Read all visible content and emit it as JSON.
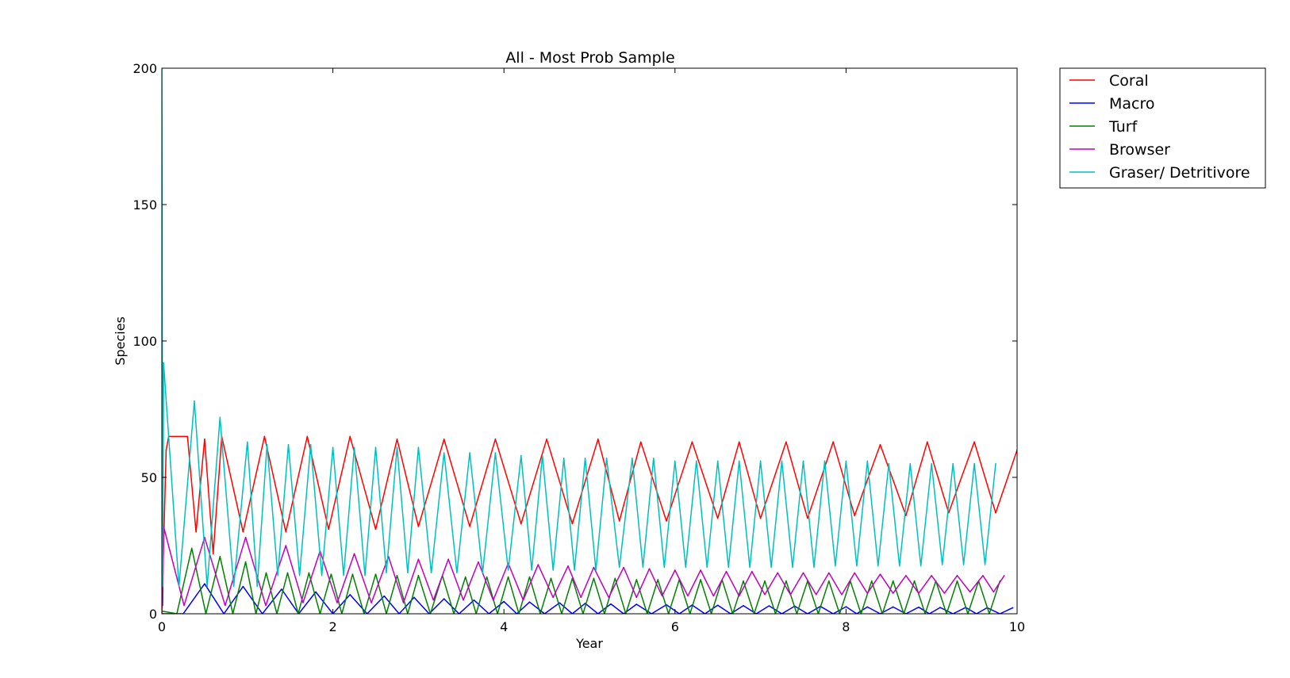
{
  "chart_data": {
    "type": "line",
    "title": "All - Most Prob Sample",
    "xlabel": "Year",
    "ylabel": "Species",
    "xlim": [
      0,
      10
    ],
    "ylim": [
      0,
      200
    ],
    "xticks": [
      0,
      2,
      4,
      6,
      8,
      10
    ],
    "yticks": [
      0,
      50,
      100,
      150,
      200
    ],
    "grid": false,
    "legend_position": "outside-top-right",
    "series": [
      {
        "name": "Coral",
        "color": "#ff0000",
        "x": [
          0,
          0.05,
          0.08,
          0.3,
          0.4,
          0.5,
          0.6,
          0.7,
          0.95,
          1.2,
          1.45,
          1.7,
          1.95,
          2.2,
          2.5,
          2.75,
          3.0,
          3.3,
          3.6,
          3.9,
          4.2,
          4.5,
          4.8,
          5.1,
          5.35,
          5.6,
          5.9,
          6.2,
          6.5,
          6.75,
          7.0,
          7.3,
          7.55,
          7.85,
          8.1,
          8.4,
          8.7,
          8.95,
          9.2,
          9.5,
          9.75,
          10.0
        ],
        "y": [
          0,
          60,
          65,
          65,
          30,
          64,
          22,
          65,
          30,
          65,
          30,
          65,
          31,
          65,
          31,
          64,
          32,
          64,
          32,
          64,
          33,
          64,
          33,
          64,
          34,
          63,
          34,
          63,
          35,
          63,
          35,
          63,
          35,
          63,
          36,
          62,
          36,
          63,
          37,
          63,
          37,
          60
        ]
      },
      {
        "name": "Macro",
        "color": "#0000ff",
        "x": [
          0,
          0.5,
          0.95,
          1.4,
          1.8,
          2.2,
          2.6,
          2.95,
          3.3,
          3.65,
          4.0,
          4.3,
          4.65,
          4.95,
          5.25,
          5.55,
          5.9,
          6.2,
          6.5,
          6.8,
          7.1,
          7.4,
          7.7,
          8.0,
          8.25,
          8.55,
          8.85,
          9.1,
          9.4,
          9.65,
          9.95
        ],
        "y": [
          0,
          11,
          10,
          9,
          8,
          7,
          6.5,
          6,
          5.5,
          5,
          4.5,
          4.3,
          4,
          3.8,
          3.6,
          3.5,
          3.3,
          3.2,
          3.1,
          3,
          2.9,
          2.8,
          2.7,
          2.6,
          2.5,
          2.5,
          2.4,
          2.3,
          2.3,
          2.2,
          2.2
        ]
      },
      {
        "name": "Turf",
        "color": "#008000",
        "x": [
          0,
          0.35,
          0.68,
          0.98,
          1.22,
          1.47,
          1.72,
          1.98,
          2.23,
          2.5,
          2.75,
          3.0,
          3.28,
          3.55,
          3.8,
          4.05,
          4.3,
          4.55,
          4.8,
          5.05,
          5.3,
          5.55,
          5.8,
          6.05,
          6.3,
          6.55,
          6.8,
          7.05,
          7.3,
          7.55,
          7.8,
          8.05,
          8.3,
          8.55,
          8.8,
          9.05,
          9.3,
          9.55,
          9.8
        ],
        "y": [
          1,
          24,
          21,
          19,
          15,
          15,
          15,
          14.5,
          14.5,
          14.5,
          14,
          14,
          14,
          13.5,
          13.5,
          13.5,
          13.5,
          13,
          13,
          13,
          13,
          12.5,
          12.5,
          12.5,
          12.5,
          12.5,
          12,
          12,
          12,
          12,
          12,
          12,
          12,
          12,
          12,
          12,
          12,
          12,
          12
        ]
      },
      {
        "name": "Browser",
        "color": "#bf00bf",
        "x": [
          0,
          0.02,
          0.5,
          0.98,
          1.45,
          1.85,
          2.25,
          2.65,
          3.0,
          3.35,
          3.7,
          4.05,
          4.4,
          4.75,
          5.05,
          5.4,
          5.7,
          6.0,
          6.3,
          6.6,
          6.9,
          7.2,
          7.5,
          7.8,
          8.1,
          8.4,
          8.7,
          9.0,
          9.3,
          9.6,
          9.85
        ],
        "y": [
          5,
          32,
          28,
          28,
          25,
          23,
          22,
          21,
          20,
          20,
          19,
          18.5,
          18,
          17.5,
          17,
          17,
          16.5,
          16,
          16,
          15.5,
          15.5,
          15,
          15,
          15,
          15,
          14.5,
          14,
          14,
          14,
          14,
          14
        ],
        "troughs": [
          3,
          4,
          5,
          6,
          6.5,
          7,
          7.5,
          8
        ]
      },
      {
        "name": "Graser/ Detritivore",
        "color": "#00bfbf",
        "x": [
          0,
          0.02,
          0.38,
          0.68,
          1.0,
          1.23,
          1.48,
          1.74,
          2.0,
          2.25,
          2.5,
          2.75,
          3.0,
          3.3,
          3.6,
          3.9,
          4.2,
          4.45,
          4.7,
          4.95,
          5.2,
          5.5,
          5.75,
          6.0,
          6.25,
          6.5,
          6.75,
          7.0,
          7.25,
          7.5,
          7.75,
          8.0,
          8.25,
          8.5,
          8.75,
          9.0,
          9.25,
          9.5,
          9.75
        ],
        "y": [
          200,
          92,
          78,
          72,
          63,
          62,
          62,
          62,
          61,
          61,
          61,
          61,
          61,
          59,
          59,
          59,
          58,
          58,
          57,
          57,
          57,
          57,
          57,
          56,
          56,
          56,
          56,
          56,
          56,
          56,
          56,
          56,
          56,
          55,
          55,
          55,
          55,
          55,
          55
        ],
        "troughs": [
          10,
          14,
          15,
          16,
          17,
          17,
          17.5,
          18
        ]
      }
    ]
  }
}
